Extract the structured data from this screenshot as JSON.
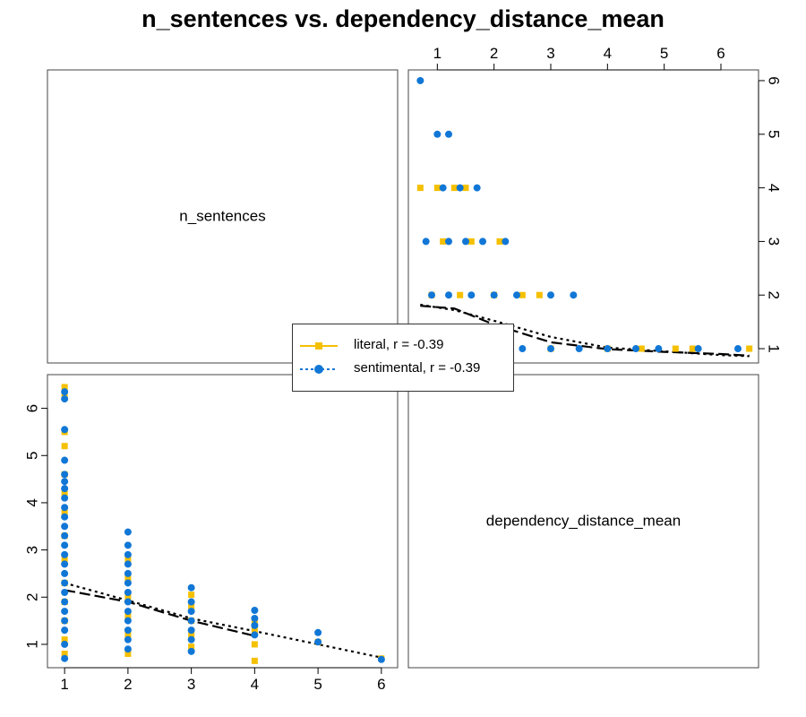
{
  "title": "n_sentences vs. dependency_distance_mean",
  "colors": {
    "literal": "#F5C000",
    "sentimental": "#1177D6",
    "trend": "#000000"
  },
  "legend": {
    "items": [
      {
        "label": "literal, r = -0.39",
        "marker": "square",
        "line": "solid",
        "color": "#F5C000"
      },
      {
        "label": "sentimental, r = -0.39",
        "marker": "circle",
        "line": "dotted",
        "color": "#1177D6"
      }
    ],
    "placement": "center"
  },
  "chart_data": [
    {
      "type": "table",
      "panel": "top-left",
      "label": "n_sentences"
    },
    {
      "type": "scatter",
      "panel": "top-right",
      "x_axis": "dependency_distance_mean",
      "y_axis": "n_sentences",
      "xticks": [
        1,
        2,
        3,
        4,
        5,
        6
      ],
      "yticks": [
        1,
        2,
        3,
        4,
        5,
        6
      ],
      "xlim": [
        0.6,
        6.6
      ],
      "ylim": [
        0.85,
        6.1
      ],
      "series": [
        {
          "name": "literal",
          "points": [
            [
              0.7,
              4
            ],
            [
              1.0,
              4
            ],
            [
              1.3,
              4
            ],
            [
              1.5,
              4
            ],
            [
              1.1,
              3
            ],
            [
              1.6,
              3
            ],
            [
              2.1,
              3
            ],
            [
              0.9,
              2
            ],
            [
              1.4,
              2
            ],
            [
              2.0,
              2
            ],
            [
              2.5,
              2
            ],
            [
              2.8,
              2
            ],
            [
              0.9,
              1
            ],
            [
              2.0,
              1
            ],
            [
              3.0,
              1
            ],
            [
              4.0,
              1
            ],
            [
              4.6,
              1
            ],
            [
              5.2,
              1
            ],
            [
              5.5,
              1
            ],
            [
              6.5,
              1
            ]
          ]
        },
        {
          "name": "sentimental",
          "points": [
            [
              0.7,
              6
            ],
            [
              1.0,
              5
            ],
            [
              1.2,
              5
            ],
            [
              1.1,
              4
            ],
            [
              1.4,
              4
            ],
            [
              1.7,
              4
            ],
            [
              0.8,
              3
            ],
            [
              1.2,
              3
            ],
            [
              1.5,
              3
            ],
            [
              1.8,
              3
            ],
            [
              2.2,
              3
            ],
            [
              0.9,
              2
            ],
            [
              1.2,
              2
            ],
            [
              1.6,
              2
            ],
            [
              2.0,
              2
            ],
            [
              2.4,
              2
            ],
            [
              3.0,
              2
            ],
            [
              3.4,
              2
            ],
            [
              0.9,
              1
            ],
            [
              1.5,
              1
            ],
            [
              2.0,
              1
            ],
            [
              2.5,
              1
            ],
            [
              3.0,
              1
            ],
            [
              3.5,
              1
            ],
            [
              4.0,
              1
            ],
            [
              4.5,
              1
            ],
            [
              4.9,
              1
            ],
            [
              5.6,
              1
            ],
            [
              6.3,
              1
            ]
          ]
        },
        {
          "name": "literal-trend",
          "line": "dashed",
          "points": [
            [
              0.7,
              1.8
            ],
            [
              1.3,
              1.75
            ],
            [
              2.0,
              1.45
            ],
            [
              3.0,
              1.12
            ],
            [
              4.0,
              0.99
            ],
            [
              5.0,
              0.94
            ],
            [
              6.0,
              0.9
            ],
            [
              6.5,
              0.87
            ]
          ]
        },
        {
          "name": "sentimental-trend",
          "line": "dotted",
          "points": [
            [
              0.7,
              1.82
            ],
            [
              1.3,
              1.72
            ],
            [
              2.0,
              1.52
            ],
            [
              3.0,
              1.22
            ],
            [
              4.0,
              1.02
            ],
            [
              5.0,
              0.95
            ],
            [
              6.0,
              0.88
            ],
            [
              6.5,
              0.86
            ]
          ]
        }
      ]
    },
    {
      "type": "scatter",
      "panel": "bottom-left",
      "x_axis": "n_sentences",
      "y_axis": "dependency_distance_mean",
      "xticks": [
        1,
        2,
        3,
        4,
        5,
        6
      ],
      "yticks": [
        1,
        2,
        3,
        4,
        5,
        6
      ],
      "xlim": [
        0.8,
        6.2
      ],
      "ylim": [
        0.6,
        6.6
      ],
      "series": [
        {
          "name": "literal",
          "points": [
            [
              1,
              6.45
            ],
            [
              1,
              6.3
            ],
            [
              1,
              5.5
            ],
            [
              1,
              5.2
            ],
            [
              1,
              4.6
            ],
            [
              1,
              4.2
            ],
            [
              1,
              3.8
            ],
            [
              1,
              3.3
            ],
            [
              1,
              2.8
            ],
            [
              1,
              2.3
            ],
            [
              1,
              1.9
            ],
            [
              1,
              1.5
            ],
            [
              1,
              1.1
            ],
            [
              1,
              0.8
            ],
            [
              2,
              2.8
            ],
            [
              2,
              2.4
            ],
            [
              2,
              2.0
            ],
            [
              2,
              1.6
            ],
            [
              2,
              1.2
            ],
            [
              2,
              0.8
            ],
            [
              3,
              2.05
            ],
            [
              3,
              1.8
            ],
            [
              3,
              1.5
            ],
            [
              3,
              1.2
            ],
            [
              3,
              0.95
            ],
            [
              4,
              1.5
            ],
            [
              4,
              1.3
            ],
            [
              4,
              1.0
            ],
            [
              4,
              0.65
            ],
            [
              5,
              1.05
            ],
            [
              6,
              0.7
            ]
          ]
        },
        {
          "name": "sentimental",
          "points": [
            [
              1,
              6.35
            ],
            [
              1,
              6.2
            ],
            [
              1,
              5.55
            ],
            [
              1,
              4.9
            ],
            [
              1,
              4.6
            ],
            [
              1,
              4.45
            ],
            [
              1,
              4.3
            ],
            [
              1,
              4.1
            ],
            [
              1,
              3.9
            ],
            [
              1,
              3.7
            ],
            [
              1,
              3.5
            ],
            [
              1,
              3.3
            ],
            [
              1,
              3.1
            ],
            [
              1,
              2.9
            ],
            [
              1,
              2.7
            ],
            [
              1,
              2.5
            ],
            [
              1,
              2.3
            ],
            [
              1,
              2.1
            ],
            [
              1,
              1.9
            ],
            [
              1,
              1.7
            ],
            [
              1,
              1.5
            ],
            [
              1,
              1.3
            ],
            [
              1,
              1.0
            ],
            [
              1,
              0.7
            ],
            [
              2,
              3.38
            ],
            [
              2,
              3.1
            ],
            [
              2,
              2.9
            ],
            [
              2,
              2.7
            ],
            [
              2,
              2.5
            ],
            [
              2,
              2.3
            ],
            [
              2,
              2.1
            ],
            [
              2,
              1.9
            ],
            [
              2,
              1.7
            ],
            [
              2,
              1.5
            ],
            [
              2,
              1.3
            ],
            [
              2,
              1.1
            ],
            [
              2,
              0.9
            ],
            [
              3,
              2.2
            ],
            [
              3,
              1.9
            ],
            [
              3,
              1.7
            ],
            [
              3,
              1.5
            ],
            [
              3,
              1.3
            ],
            [
              3,
              1.1
            ],
            [
              3,
              0.85
            ],
            [
              4,
              1.72
            ],
            [
              4,
              1.55
            ],
            [
              4,
              1.4
            ],
            [
              4,
              1.2
            ],
            [
              5,
              1.25
            ],
            [
              5,
              1.05
            ],
            [
              6,
              0.68
            ]
          ]
        },
        {
          "name": "literal-trend",
          "line": "dashed",
          "points": [
            [
              1,
              2.15
            ],
            [
              2,
              1.9
            ],
            [
              3,
              1.5
            ],
            [
              4,
              1.18
            ]
          ]
        },
        {
          "name": "sentimental-trend",
          "line": "dotted",
          "points": [
            [
              1,
              2.3
            ],
            [
              2,
              1.93
            ],
            [
              3,
              1.55
            ],
            [
              4,
              1.28
            ],
            [
              5,
              1.0
            ],
            [
              6,
              0.72
            ]
          ]
        }
      ]
    },
    {
      "type": "table",
      "panel": "bottom-right",
      "label": "dependency_distance_mean"
    }
  ]
}
